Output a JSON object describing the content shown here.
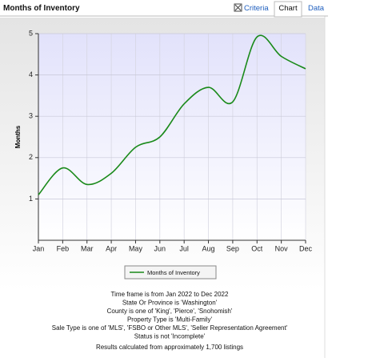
{
  "header": {
    "title": "Months of Inventory",
    "tabs": [
      "Criteria",
      "Chart",
      "Data"
    ]
  },
  "chart_data": {
    "type": "line",
    "y_label": "Months",
    "categories": [
      "Jan",
      "Feb",
      "Mar",
      "Apr",
      "May",
      "Jun",
      "Jul",
      "Aug",
      "Sep",
      "Oct",
      "Nov",
      "Dec"
    ],
    "series": [
      {
        "name": "Months of Inventory",
        "color": "#1a8a1a",
        "values": [
          1.1,
          1.75,
          1.35,
          1.62,
          2.25,
          2.5,
          3.3,
          3.7,
          3.35,
          4.92,
          4.45,
          4.15
        ]
      }
    ],
    "ylim": [
      0,
      5
    ],
    "yticks": [
      1,
      2,
      3,
      4,
      5
    ],
    "grid": true,
    "smooth": true,
    "legend": "bottom"
  },
  "notes": [
    "Time frame is from Jan 2022 to Dec 2022",
    "State Or Province is 'Washington'",
    "County is one of 'King', 'Pierce', 'Snohomish'",
    "Property Type is 'Multi-Family'",
    "Sale Type is one of 'MLS', 'FSBO or Other MLS', 'Seller Representation Agreement'",
    "Status is not 'Incomplete'",
    "Results calculated from approximately 1,700 listings"
  ]
}
